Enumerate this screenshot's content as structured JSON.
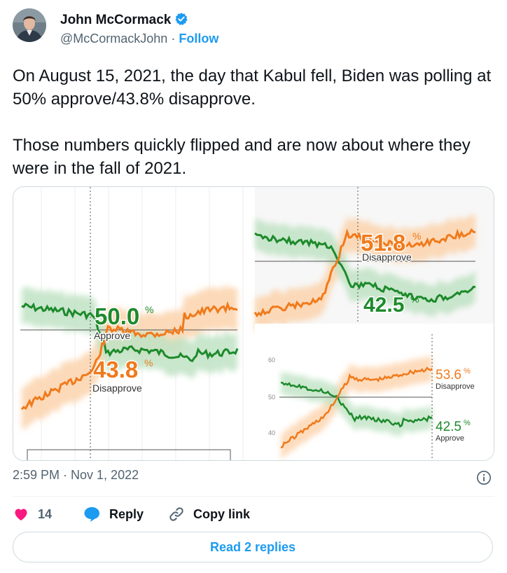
{
  "author": {
    "name": "John McCormack",
    "handle": "@McCormackJohn",
    "separator": "·",
    "follow_label": "Follow"
  },
  "tweet": {
    "paragraphs": [
      "On August 15, 2021, the day that Kabul fell, Biden was polling at 50% approve/43.8% disapprove.",
      "Those numbers quickly flipped and are now about where they were in the fall of 2021."
    ],
    "timestamp": "2:59 PM · Nov 1, 2022"
  },
  "actions": {
    "likes": "14",
    "reply_label": "Reply",
    "copy_label": "Copy link"
  },
  "read_replies_label": "Read 2 replies",
  "colors": {
    "approve": "#1d8a2b",
    "disapprove": "#f07a1c",
    "link": "#1d9bf0",
    "heart": "#f91880"
  },
  "chart_data": [
    {
      "type": "line",
      "panel": "left",
      "series": [
        {
          "name": "Approve",
          "label_value": "50.0",
          "unit": "%"
        },
        {
          "name": "Disapprove",
          "label_value": "43.8",
          "unit": "%"
        }
      ]
    },
    {
      "type": "line",
      "panel": "top-right",
      "series": [
        {
          "name": "Disapprove",
          "label_value": "51.8",
          "unit": "%"
        },
        {
          "name": "",
          "label_value": "42.5",
          "unit": "%"
        }
      ]
    },
    {
      "type": "line",
      "panel": "bottom-right",
      "y_ticks": [
        "60",
        "50",
        "40"
      ],
      "series": [
        {
          "name": "Disapprove",
          "label_value": "53.6",
          "unit": "%"
        },
        {
          "name": "Approve",
          "label_value": "42.5",
          "unit": "%"
        }
      ]
    }
  ]
}
